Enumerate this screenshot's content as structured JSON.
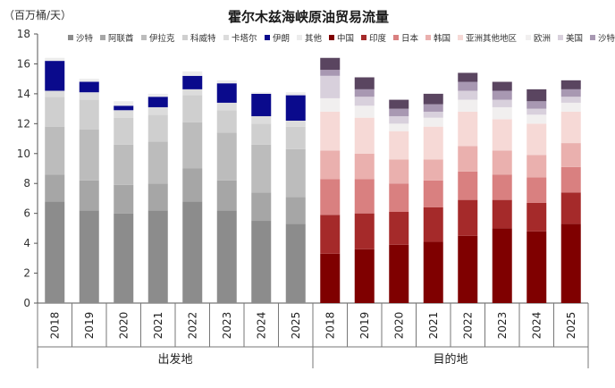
{
  "chart_data": {
    "type": "bar",
    "title": "霍尔木兹海峡原油贸易流量",
    "ylabel": "（百万桶/天）",
    "ylim": [
      0,
      18
    ],
    "yticks": [
      0,
      2,
      4,
      6,
      8,
      10,
      12,
      14,
      16,
      18
    ],
    "grid": false,
    "legend_position": "top",
    "stacked": true,
    "categories": [
      "2018",
      "2019",
      "2020",
      "2021",
      "2022",
      "2023",
      "2024",
      "2025"
    ],
    "groups": [
      {
        "name": "出发地",
        "series": [
          {
            "name": "沙特",
            "color": "#8c8c8c",
            "values": [
              6.8,
              6.2,
              6.0,
              6.2,
              6.8,
              6.2,
              5.5,
              5.3
            ]
          },
          {
            "name": "阿联酋",
            "color": "#a6a6a6",
            "values": [
              1.8,
              2.0,
              1.9,
              1.8,
              2.2,
              2.0,
              1.9,
              1.8
            ]
          },
          {
            "name": "伊拉克",
            "color": "#bcbcbc",
            "values": [
              3.2,
              3.4,
              2.7,
              2.8,
              3.1,
              3.2,
              3.2,
              3.2
            ]
          },
          {
            "name": "科威特",
            "color": "#cfcfcf",
            "values": [
              2.0,
              2.0,
              1.8,
              1.8,
              1.8,
              1.5,
              1.4,
              1.5
            ]
          },
          {
            "name": "卡塔尔",
            "color": "#dcdcdc",
            "values": [
              0.4,
              0.5,
              0.5,
              0.5,
              0.4,
              0.5,
              0.5,
              0.4
            ]
          },
          {
            "name": "伊朗",
            "color": "#0a0a8c",
            "values": [
              2.0,
              0.7,
              0.3,
              0.7,
              0.9,
              1.3,
              1.5,
              1.7
            ]
          },
          {
            "name": "其他",
            "color": "#ececec",
            "values": [
              0.2,
              0.2,
              0.3,
              0.2,
              0.3,
              0.2,
              0.1,
              0.2
            ]
          }
        ]
      },
      {
        "name": "目的地",
        "series": [
          {
            "name": "中国",
            "color": "#7f0000",
            "values": [
              3.3,
              3.6,
              3.9,
              4.1,
              4.5,
              5.0,
              4.8,
              5.3
            ]
          },
          {
            "name": "印度",
            "color": "#a52a2a",
            "values": [
              2.6,
              2.4,
              2.2,
              2.3,
              2.4,
              1.9,
              1.9,
              2.1
            ]
          },
          {
            "name": "日本",
            "color": "#d98080",
            "values": [
              2.4,
              2.3,
              1.9,
              1.8,
              1.9,
              1.7,
              1.7,
              1.7
            ]
          },
          {
            "name": "韩国",
            "color": "#eab0ae",
            "values": [
              1.9,
              1.7,
              1.6,
              1.4,
              1.7,
              1.6,
              1.5,
              1.6
            ]
          },
          {
            "name": "亚洲其他地区",
            "color": "#f6d9d6",
            "values": [
              2.6,
              2.4,
              1.9,
              2.2,
              2.3,
              2.1,
              2.1,
              2.1
            ]
          },
          {
            "name": "欧洲",
            "color": "#f1efef",
            "values": [
              0.9,
              0.8,
              0.5,
              0.6,
              0.8,
              0.8,
              0.6,
              0.6
            ]
          },
          {
            "name": "美国",
            "color": "#d8d0dc",
            "values": [
              1.5,
              0.6,
              0.5,
              0.4,
              0.6,
              0.5,
              0.4,
              0.4
            ]
          },
          {
            "name": "沙特",
            "color": "#a898b2",
            "values": [
              0.4,
              0.5,
              0.5,
              0.5,
              0.6,
              0.6,
              0.5,
              0.5
            ]
          },
          {
            "name": "其他",
            "color": "#5a4560",
            "values": [
              0.8,
              0.8,
              0.6,
              0.7,
              0.6,
              0.6,
              0.8,
              0.6
            ]
          }
        ]
      }
    ]
  }
}
